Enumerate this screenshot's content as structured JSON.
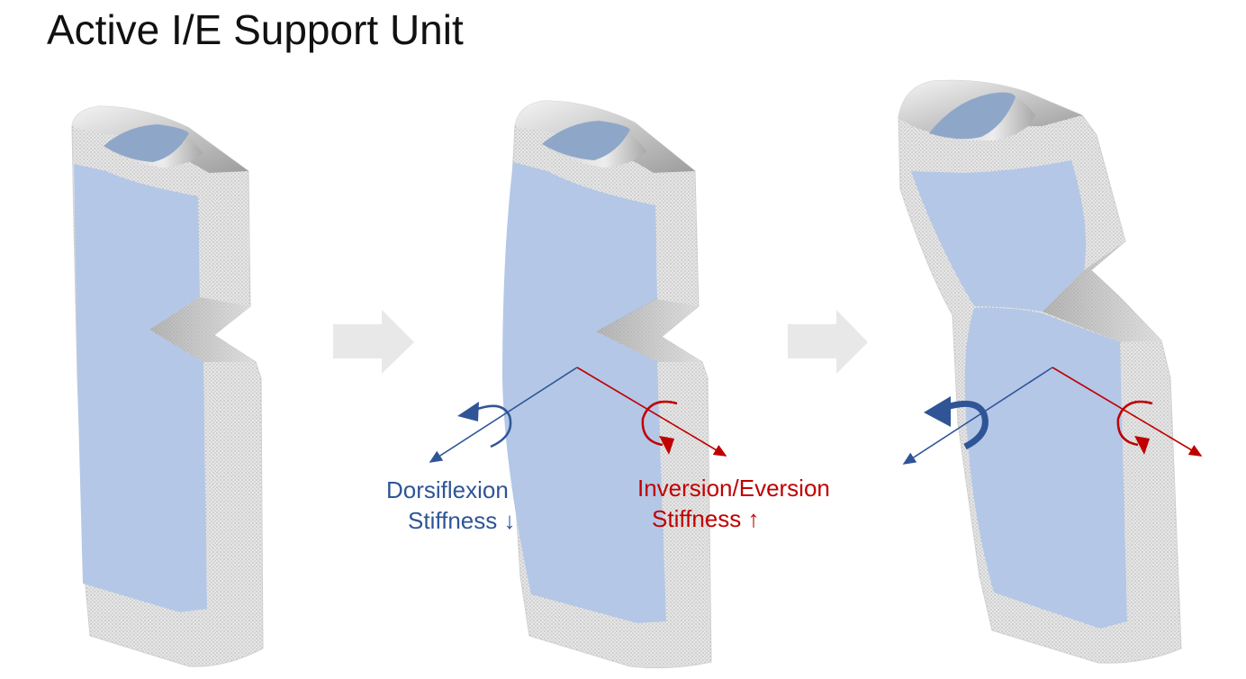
{
  "title": "Active I/E Support Unit",
  "labels": {
    "dorsiflexion_line1": "Dorsiflexion",
    "dorsiflexion_line2": "Stiffness ↓",
    "inversion_line1": "Inversion/Eversion",
    "inversion_line2": "Stiffness ↑"
  },
  "colors": {
    "blue": "#2f5597",
    "red": "#c00000",
    "fill": "#b4c7e7",
    "shell": "#e4e4e4",
    "arrow_gray": "#e8e8e8"
  },
  "icons": [
    "gray-right-arrow-icon",
    "rotation-arrow-icon"
  ]
}
